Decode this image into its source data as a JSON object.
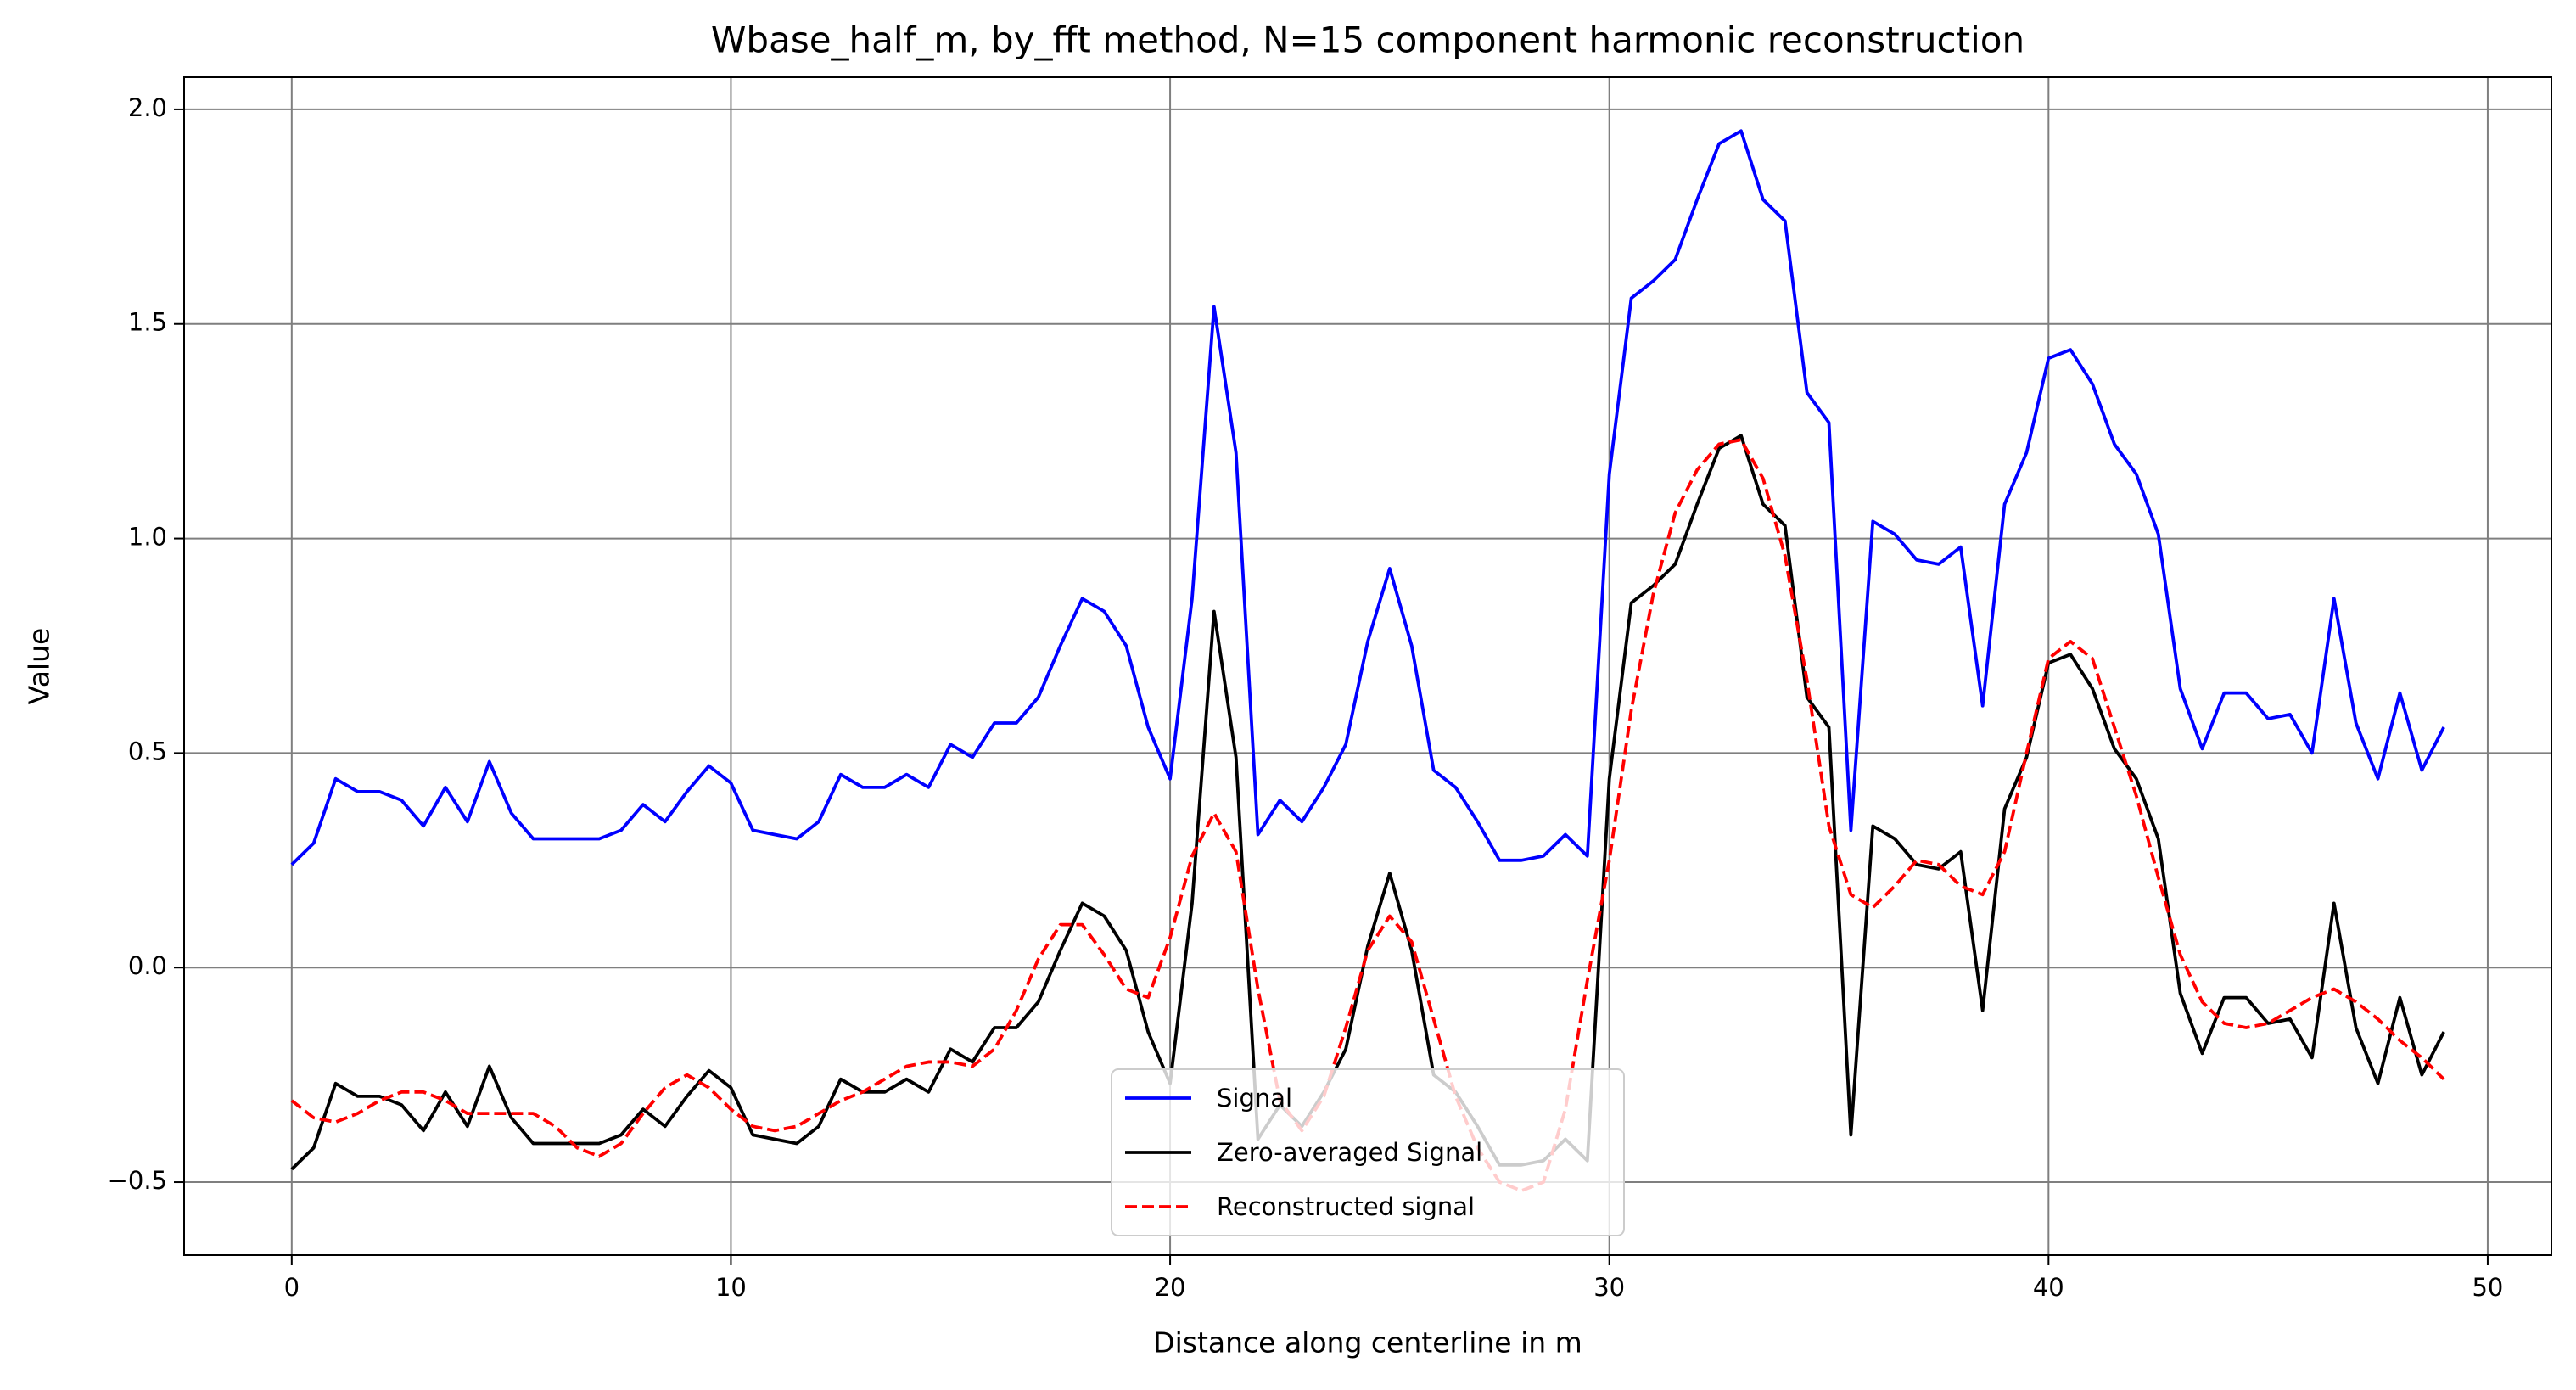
{
  "chart_data": {
    "type": "line",
    "title": "Wbase_half_m, by_fft method, N=15 component harmonic reconstruction",
    "xlabel": "Distance along centerline in m",
    "ylabel": "Value",
    "x": [
      0,
      0.5,
      1,
      1.5,
      2,
      2.5,
      3,
      3.5,
      4,
      4.5,
      5,
      5.5,
      6,
      6.5,
      7,
      7.5,
      8,
      8.5,
      9,
      9.5,
      10,
      10.5,
      11,
      11.5,
      12,
      12.5,
      13,
      13.5,
      14,
      14.5,
      15,
      15.5,
      16,
      16.5,
      17,
      17.5,
      18,
      18.5,
      19,
      19.5,
      20,
      20.5,
      21,
      21.5,
      22,
      22.5,
      23,
      23.5,
      24,
      24.5,
      25,
      25.5,
      26,
      26.5,
      27,
      27.5,
      28,
      28.5,
      29,
      29.5,
      30,
      30.5,
      31,
      31.5,
      32,
      32.5,
      33,
      33.5,
      34,
      34.5,
      35,
      35.5,
      36,
      36.5,
      37,
      37.5,
      38,
      38.5,
      39,
      39.5,
      40,
      40.5,
      41,
      41.5,
      42,
      42.5,
      43,
      43.5,
      44,
      44.5,
      45,
      45.5,
      46,
      46.5,
      47,
      47.5,
      48,
      48.5,
      49
    ],
    "series": [
      {
        "name": "Signal",
        "color": "#0000ff",
        "linestyle": "solid",
        "values": [
          0.24,
          0.29,
          0.44,
          0.41,
          0.41,
          0.39,
          0.33,
          0.42,
          0.34,
          0.48,
          0.36,
          0.3,
          0.3,
          0.3,
          0.3,
          0.32,
          0.38,
          0.34,
          0.41,
          0.47,
          0.43,
          0.32,
          0.31,
          0.3,
          0.34,
          0.45,
          0.42,
          0.42,
          0.45,
          0.42,
          0.52,
          0.49,
          0.57,
          0.57,
          0.63,
          0.75,
          0.86,
          0.83,
          0.75,
          0.56,
          0.44,
          0.86,
          1.54,
          1.2,
          0.31,
          0.39,
          0.34,
          0.42,
          0.52,
          0.76,
          0.93,
          0.75,
          0.46,
          0.42,
          0.34,
          0.25,
          0.25,
          0.26,
          0.31,
          0.26,
          1.15,
          1.56,
          1.6,
          1.65,
          1.79,
          1.92,
          1.95,
          1.79,
          1.74,
          1.34,
          1.27,
          0.32,
          1.04,
          1.01,
          0.95,
          0.94,
          0.98,
          0.61,
          1.08,
          1.2,
          1.42,
          1.44,
          1.36,
          1.22,
          1.15,
          1.01,
          0.65,
          0.51,
          0.64,
          0.64,
          0.58,
          0.59,
          0.5,
          0.86,
          0.57,
          0.44,
          0.64,
          0.46,
          0.56
        ]
      },
      {
        "name": "Zero-averaged Signal",
        "color": "#000000",
        "linestyle": "solid",
        "values": [
          -0.47,
          -0.42,
          -0.27,
          -0.3,
          -0.3,
          -0.32,
          -0.38,
          -0.29,
          -0.37,
          -0.23,
          -0.35,
          -0.41,
          -0.41,
          -0.41,
          -0.41,
          -0.39,
          -0.33,
          -0.37,
          -0.3,
          -0.24,
          -0.28,
          -0.39,
          -0.4,
          -0.41,
          -0.37,
          -0.26,
          -0.29,
          -0.29,
          -0.26,
          -0.29,
          -0.19,
          -0.22,
          -0.14,
          -0.14,
          -0.08,
          0.04,
          0.15,
          0.12,
          0.04,
          -0.15,
          -0.27,
          0.15,
          0.83,
          0.49,
          -0.4,
          -0.32,
          -0.37,
          -0.29,
          -0.19,
          0.05,
          0.22,
          0.04,
          -0.25,
          -0.29,
          -0.37,
          -0.46,
          -0.46,
          -0.45,
          -0.4,
          -0.45,
          0.44,
          0.85,
          0.89,
          0.94,
          1.08,
          1.21,
          1.24,
          1.08,
          1.03,
          0.63,
          0.56,
          -0.39,
          0.33,
          0.3,
          0.24,
          0.23,
          0.27,
          -0.1,
          0.37,
          0.49,
          0.71,
          0.73,
          0.65,
          0.51,
          0.44,
          0.3,
          -0.06,
          -0.2,
          -0.07,
          -0.07,
          -0.13,
          -0.12,
          -0.21,
          0.15,
          -0.14,
          -0.27,
          -0.07,
          -0.25,
          -0.15
        ]
      },
      {
        "name": "Reconstructed signal",
        "color": "#ff0000",
        "linestyle": "dashed",
        "values": [
          -0.31,
          -0.35,
          -0.36,
          -0.34,
          -0.31,
          -0.29,
          -0.29,
          -0.31,
          -0.34,
          -0.34,
          -0.34,
          -0.34,
          -0.37,
          -0.42,
          -0.44,
          -0.41,
          -0.34,
          -0.28,
          -0.25,
          -0.28,
          -0.33,
          -0.37,
          -0.38,
          -0.37,
          -0.34,
          -0.31,
          -0.29,
          -0.26,
          -0.23,
          -0.22,
          -0.22,
          -0.23,
          -0.19,
          -0.1,
          0.02,
          0.1,
          0.1,
          0.03,
          -0.05,
          -0.07,
          0.07,
          0.26,
          0.36,
          0.27,
          -0.05,
          -0.31,
          -0.38,
          -0.3,
          -0.14,
          0.04,
          0.12,
          0.06,
          -0.12,
          -0.3,
          -0.42,
          -0.5,
          -0.52,
          -0.5,
          -0.33,
          -0.03,
          0.25,
          0.6,
          0.87,
          1.06,
          1.16,
          1.22,
          1.23,
          1.14,
          0.96,
          0.67,
          0.33,
          0.17,
          0.14,
          0.19,
          0.25,
          0.24,
          0.19,
          0.17,
          0.27,
          0.5,
          0.72,
          0.76,
          0.72,
          0.56,
          0.4,
          0.21,
          0.03,
          -0.08,
          -0.13,
          -0.14,
          -0.13,
          -0.1,
          -0.07,
          -0.05,
          -0.08,
          -0.12,
          -0.17,
          -0.21,
          -0.26
        ]
      }
    ],
    "xlim": [
      -2.45,
      51.45
    ],
    "xticks": [
      0,
      10,
      20,
      30,
      40,
      50
    ],
    "ylim": [
      -0.67,
      2.075
    ],
    "yticks": [
      {
        "value": -0.5,
        "label": "−0.5"
      },
      {
        "value": 0,
        "label": "0.0"
      },
      0.5,
      {
        "value": 1,
        "label": "1.0"
      },
      1.5,
      {
        "value": 2,
        "label": "2.0"
      }
    ],
    "grid": true,
    "legend": "lower center"
  }
}
